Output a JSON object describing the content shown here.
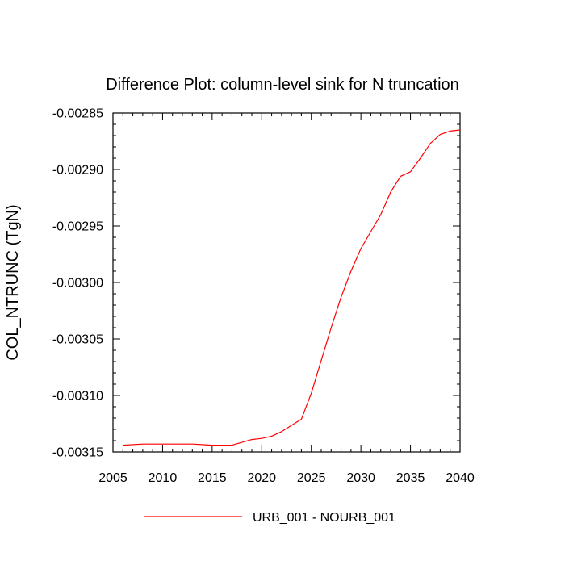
{
  "chart_data": {
    "type": "line",
    "title": "Difference Plot: column-level sink for N truncation",
    "xlabel": "",
    "ylabel": "COL_NTRUNC  (TgN)",
    "xlim": [
      2005,
      2040
    ],
    "ylim": [
      -0.00315,
      -0.00285
    ],
    "xticks": [
      2005,
      2010,
      2015,
      2020,
      2025,
      2030,
      2035,
      2040
    ],
    "yticks": [
      -0.00315,
      -0.0031,
      -0.00305,
      -0.003,
      -0.00295,
      -0.0029,
      -0.00285
    ],
    "xtick_labels": [
      "2005",
      "2010",
      "2015",
      "2020",
      "2025",
      "2030",
      "2035",
      "2040"
    ],
    "ytick_labels": [
      "-0.00315",
      "-0.00310",
      "-0.00305",
      "-0.00300",
      "-0.00295",
      "-0.00290",
      "-0.00285"
    ],
    "grid": false,
    "legend": "bottom-center",
    "series": [
      {
        "name": "URB_001 - NOURB_001",
        "color": "#ff0000",
        "x": [
          2006,
          2008,
          2010,
          2013,
          2015,
          2017,
          2019,
          2020,
          2021,
          2022,
          2024,
          2025,
          2026,
          2027,
          2028,
          2029,
          2030,
          2031,
          2032,
          2033,
          2034,
          2035,
          2036,
          2037,
          2038,
          2039,
          2040
        ],
        "y": [
          -0.003144,
          -0.003143,
          -0.003143,
          -0.003143,
          -0.003144,
          -0.003144,
          -0.003139,
          -0.003138,
          -0.003136,
          -0.003132,
          -0.003121,
          -0.003098,
          -0.003069,
          -0.00304,
          -0.003013,
          -0.00299,
          -0.00297,
          -0.002955,
          -0.00294,
          -0.00292,
          -0.002906,
          -0.002902,
          -0.00289,
          -0.002877,
          -0.002869,
          -0.002866,
          -0.002865
        ]
      }
    ]
  }
}
